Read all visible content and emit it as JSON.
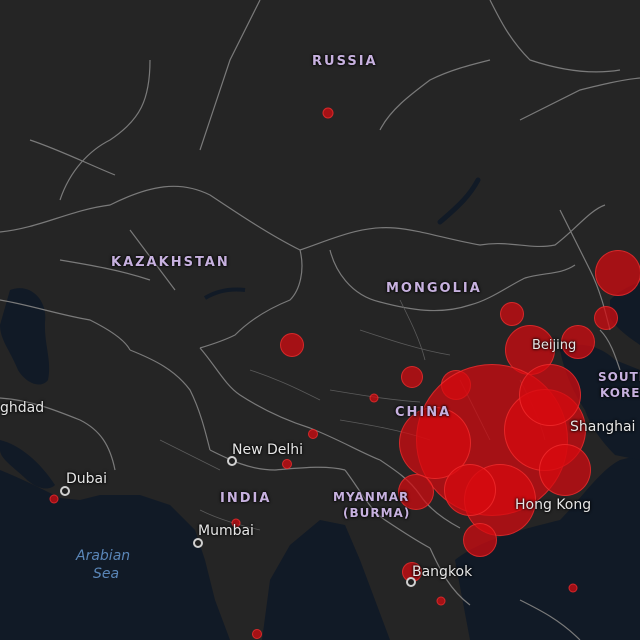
{
  "country_labels": {
    "russia": "RUSSIA",
    "kazakhstan": "KAZAKHSTAN",
    "mongolia": "MONGOLIA",
    "china": "CHINA",
    "india": "INDIA",
    "myanmar_line1": "MYANMAR",
    "myanmar_line2": "(BURMA)",
    "south_korea_line1": "SOUTH",
    "south_korea_line2": "KOREA"
  },
  "city_labels": {
    "baghdad": "ghdad",
    "new_delhi": "New Delhi",
    "dubai": "Dubai",
    "mumbai": "Mumbai",
    "beijing": "Beijing",
    "shanghai": "Shanghai",
    "hong_kong": "Hong Kong",
    "bangkok": "Bangkok"
  },
  "sea_labels": {
    "arabian_sea_line1": "Arabian",
    "arabian_sea_line2": "Sea"
  },
  "colors": {
    "land": "#252525",
    "water": "#111a26",
    "borders": "#7a7a7a",
    "case_marker": "#d70a0f",
    "country_label": "#c7b1df",
    "sea_label": "#5a86b8"
  }
}
